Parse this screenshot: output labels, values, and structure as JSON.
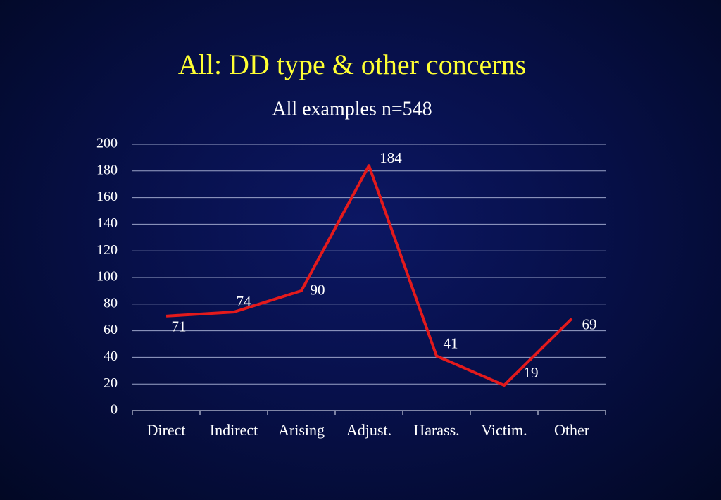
{
  "chart_data": {
    "type": "line",
    "title": "All: DD type & other concerns",
    "subtitle": "All examples n=548",
    "categories": [
      "Direct",
      "Indirect",
      "Arising",
      "Adjust.",
      "Harass.",
      "Victim.",
      "Other"
    ],
    "values": [
      71,
      74,
      90,
      184,
      41,
      19,
      69
    ],
    "color": "#e31a1c",
    "ylim": [
      0,
      200
    ],
    "yticks": [
      0,
      20,
      40,
      60,
      80,
      100,
      120,
      140,
      160,
      180,
      200
    ],
    "grid": true
  }
}
